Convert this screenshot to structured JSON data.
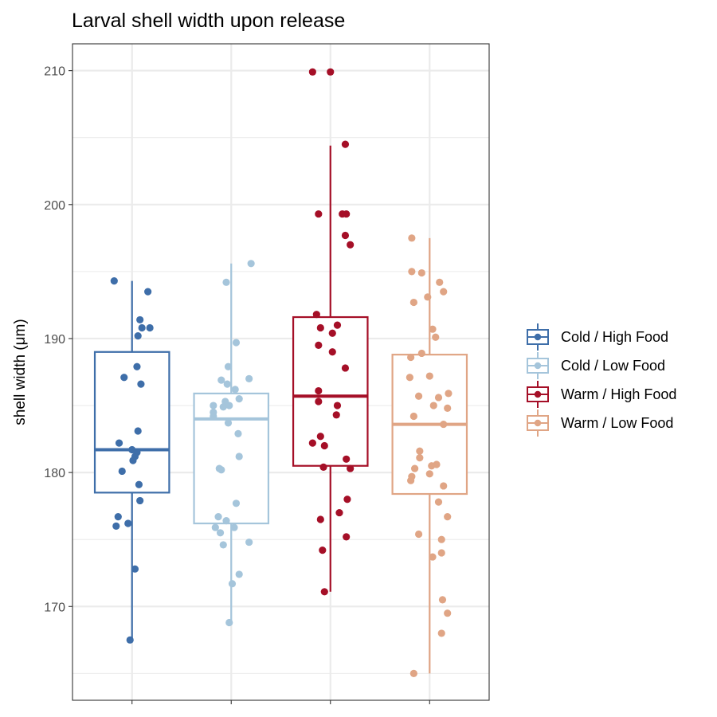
{
  "chart_data": {
    "type": "box",
    "title": "Larval shell width upon release",
    "xlabel": "",
    "ylabel": "shell width (μm)",
    "ylim": [
      163,
      212
    ],
    "y_ticks": [
      170,
      180,
      190,
      200,
      210
    ],
    "grid": true,
    "legend_position": "right",
    "series": [
      {
        "name": "Cold / High Food",
        "color": "#3e6ea9",
        "box": {
          "whisker_low": 167.5,
          "q1": 178.5,
          "median": 181.7,
          "q3": 189.0,
          "whisker_high": 194.3
        },
        "points": [
          {
            "dx": -0.18,
            "y": 194.3
          },
          {
            "dx": 0.16,
            "y": 193.5
          },
          {
            "dx": 0.08,
            "y": 191.4
          },
          {
            "dx": 0.1,
            "y": 190.8
          },
          {
            "dx": 0.18,
            "y": 190.8
          },
          {
            "dx": 0.06,
            "y": 190.2
          },
          {
            "dx": 0.05,
            "y": 187.9
          },
          {
            "dx": -0.08,
            "y": 187.1
          },
          {
            "dx": 0.09,
            "y": 186.6
          },
          {
            "dx": 0.06,
            "y": 183.1
          },
          {
            "dx": -0.13,
            "y": 182.2
          },
          {
            "dx": 0.0,
            "y": 181.7
          },
          {
            "dx": 0.05,
            "y": 181.5
          },
          {
            "dx": 0.03,
            "y": 181.2
          },
          {
            "dx": 0.01,
            "y": 180.9
          },
          {
            "dx": -0.1,
            "y": 180.1
          },
          {
            "dx": 0.07,
            "y": 179.1
          },
          {
            "dx": 0.08,
            "y": 177.9
          },
          {
            "dx": -0.14,
            "y": 176.7
          },
          {
            "dx": -0.16,
            "y": 176.0
          },
          {
            "dx": -0.04,
            "y": 176.2
          },
          {
            "dx": 0.03,
            "y": 172.8
          },
          {
            "dx": -0.02,
            "y": 167.5
          }
        ]
      },
      {
        "name": "Cold / Low Food",
        "color": "#a5c5db",
        "box": {
          "whisker_low": 168.8,
          "q1": 176.2,
          "median": 184.0,
          "q3": 185.9,
          "whisker_high": 195.6
        },
        "points": [
          {
            "dx": 0.2,
            "y": 195.6
          },
          {
            "dx": -0.05,
            "y": 194.2
          },
          {
            "dx": 0.05,
            "y": 189.7
          },
          {
            "dx": -0.03,
            "y": 187.9
          },
          {
            "dx": 0.18,
            "y": 187.0
          },
          {
            "dx": -0.1,
            "y": 186.9
          },
          {
            "dx": -0.04,
            "y": 186.6
          },
          {
            "dx": 0.04,
            "y": 186.2
          },
          {
            "dx": 0.08,
            "y": 185.5
          },
          {
            "dx": -0.06,
            "y": 185.3
          },
          {
            "dx": -0.18,
            "y": 185.0
          },
          {
            "dx": -0.02,
            "y": 185.0
          },
          {
            "dx": -0.08,
            "y": 184.9
          },
          {
            "dx": -0.18,
            "y": 184.5
          },
          {
            "dx": -0.18,
            "y": 184.2
          },
          {
            "dx": -0.03,
            "y": 183.7
          },
          {
            "dx": 0.07,
            "y": 182.9
          },
          {
            "dx": 0.08,
            "y": 181.2
          },
          {
            "dx": -0.12,
            "y": 180.3
          },
          {
            "dx": -0.1,
            "y": 180.2
          },
          {
            "dx": 0.05,
            "y": 177.7
          },
          {
            "dx": -0.13,
            "y": 176.7
          },
          {
            "dx": -0.05,
            "y": 176.4
          },
          {
            "dx": -0.16,
            "y": 175.9
          },
          {
            "dx": 0.03,
            "y": 175.9
          },
          {
            "dx": -0.11,
            "y": 175.5
          },
          {
            "dx": 0.18,
            "y": 174.8
          },
          {
            "dx": -0.08,
            "y": 174.6
          },
          {
            "dx": 0.08,
            "y": 172.4
          },
          {
            "dx": 0.01,
            "y": 171.7
          },
          {
            "dx": -0.02,
            "y": 168.8
          }
        ]
      },
      {
        "name": "Warm / High Food",
        "color": "#a50f27",
        "box": {
          "whisker_low": 171.1,
          "q1": 180.5,
          "median": 185.7,
          "q3": 191.6,
          "whisker_high": 204.4
        },
        "points": [
          {
            "dx": -0.18,
            "y": 209.9
          },
          {
            "dx": 0.0,
            "y": 209.9
          },
          {
            "dx": 0.15,
            "y": 204.5
          },
          {
            "dx": -0.12,
            "y": 199.3
          },
          {
            "dx": 0.12,
            "y": 199.3
          },
          {
            "dx": 0.16,
            "y": 199.3
          },
          {
            "dx": 0.15,
            "y": 197.7
          },
          {
            "dx": 0.2,
            "y": 197.0
          },
          {
            "dx": -0.14,
            "y": 191.8
          },
          {
            "dx": -0.1,
            "y": 190.8
          },
          {
            "dx": 0.07,
            "y": 191.0
          },
          {
            "dx": 0.02,
            "y": 190.4
          },
          {
            "dx": -0.12,
            "y": 189.5
          },
          {
            "dx": 0.02,
            "y": 189.0
          },
          {
            "dx": 0.15,
            "y": 187.8
          },
          {
            "dx": -0.12,
            "y": 186.1
          },
          {
            "dx": -0.12,
            "y": 185.3
          },
          {
            "dx": 0.07,
            "y": 185.0
          },
          {
            "dx": 0.06,
            "y": 184.3
          },
          {
            "dx": -0.1,
            "y": 182.7
          },
          {
            "dx": -0.18,
            "y": 182.2
          },
          {
            "dx": -0.06,
            "y": 182.0
          },
          {
            "dx": 0.16,
            "y": 181.0
          },
          {
            "dx": -0.07,
            "y": 180.4
          },
          {
            "dx": 0.2,
            "y": 180.3
          },
          {
            "dx": 0.17,
            "y": 178.0
          },
          {
            "dx": 0.09,
            "y": 177.0
          },
          {
            "dx": -0.1,
            "y": 176.5
          },
          {
            "dx": 0.16,
            "y": 175.2
          },
          {
            "dx": -0.08,
            "y": 174.2
          },
          {
            "dx": -0.06,
            "y": 171.1
          }
        ]
      },
      {
        "name": "Warm / Low Food",
        "color": "#e0a585",
        "box": {
          "whisker_low": 165.0,
          "q1": 178.4,
          "median": 183.6,
          "q3": 188.8,
          "whisker_high": 197.5
        },
        "points": [
          {
            "dx": -0.18,
            "y": 197.5
          },
          {
            "dx": -0.18,
            "y": 195.0
          },
          {
            "dx": -0.08,
            "y": 194.9
          },
          {
            "dx": 0.1,
            "y": 194.2
          },
          {
            "dx": -0.02,
            "y": 193.1
          },
          {
            "dx": 0.14,
            "y": 193.5
          },
          {
            "dx": -0.16,
            "y": 192.7
          },
          {
            "dx": 0.03,
            "y": 190.7
          },
          {
            "dx": 0.06,
            "y": 190.1
          },
          {
            "dx": -0.08,
            "y": 188.9
          },
          {
            "dx": -0.19,
            "y": 188.6
          },
          {
            "dx": -0.2,
            "y": 187.1
          },
          {
            "dx": 0.0,
            "y": 187.2
          },
          {
            "dx": -0.11,
            "y": 185.7
          },
          {
            "dx": 0.19,
            "y": 185.9
          },
          {
            "dx": 0.09,
            "y": 185.6
          },
          {
            "dx": 0.04,
            "y": 185.0
          },
          {
            "dx": 0.18,
            "y": 184.8
          },
          {
            "dx": -0.16,
            "y": 184.2
          },
          {
            "dx": 0.14,
            "y": 183.6
          },
          {
            "dx": -0.1,
            "y": 181.6
          },
          {
            "dx": -0.1,
            "y": 181.1
          },
          {
            "dx": -0.15,
            "y": 180.3
          },
          {
            "dx": 0.02,
            "y": 180.5
          },
          {
            "dx": 0.07,
            "y": 180.6
          },
          {
            "dx": 0.0,
            "y": 179.9
          },
          {
            "dx": -0.18,
            "y": 179.7
          },
          {
            "dx": -0.19,
            "y": 179.4
          },
          {
            "dx": 0.14,
            "y": 179.0
          },
          {
            "dx": 0.09,
            "y": 177.8
          },
          {
            "dx": 0.18,
            "y": 176.7
          },
          {
            "dx": -0.11,
            "y": 175.4
          },
          {
            "dx": 0.12,
            "y": 175.0
          },
          {
            "dx": 0.12,
            "y": 174.0
          },
          {
            "dx": 0.03,
            "y": 173.7
          },
          {
            "dx": 0.13,
            "y": 170.5
          },
          {
            "dx": 0.18,
            "y": 169.5
          },
          {
            "dx": 0.12,
            "y": 168.0
          },
          {
            "dx": -0.16,
            "y": 165.0
          }
        ]
      }
    ]
  }
}
